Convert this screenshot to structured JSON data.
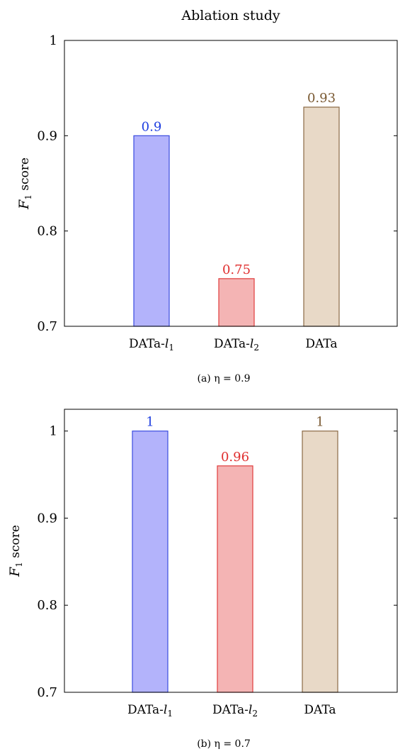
{
  "chart_data": [
    {
      "type": "bar",
      "panel": "a",
      "title": "Ablation study",
      "ylabel": "F1 score",
      "caption": "(a) η = 0.9",
      "categories": [
        "DATa-l1",
        "DATa-l2",
        "DATa"
      ],
      "values": [
        0.9,
        0.75,
        0.93
      ],
      "data_labels": [
        "0.9",
        "0.75",
        "0.93"
      ],
      "ylim": [
        0.7,
        1.0
      ],
      "yticks": [
        0.7,
        0.8,
        0.9,
        1.0
      ],
      "ytick_labels": [
        "0.7",
        "0.8",
        "0.9",
        "1"
      ],
      "grid": false
    },
    {
      "type": "bar",
      "panel": "b",
      "title": "",
      "ylabel": "F1 score",
      "caption": "(b) η = 0.7",
      "categories": [
        "DATa-l1",
        "DATa-l2",
        "DATa"
      ],
      "values": [
        1.0,
        0.96,
        1.0
      ],
      "data_labels": [
        "1",
        "0.96",
        "1"
      ],
      "ylim": [
        0.7,
        1.025
      ],
      "yticks": [
        0.7,
        0.8,
        0.9,
        1.0
      ],
      "ytick_labels": [
        "0.7",
        "0.8",
        "0.9",
        "1"
      ],
      "grid": false
    }
  ],
  "colors": {
    "bar_fills": [
      "#b3b3fb",
      "#f4b4b4",
      "#e8d9c7"
    ],
    "bar_strokes": [
      "#3a4ce0",
      "#e03c3c",
      "#8b6a45"
    ],
    "label_colors": [
      "#1f3fe0",
      "#e03030",
      "#7a5a33"
    ]
  }
}
